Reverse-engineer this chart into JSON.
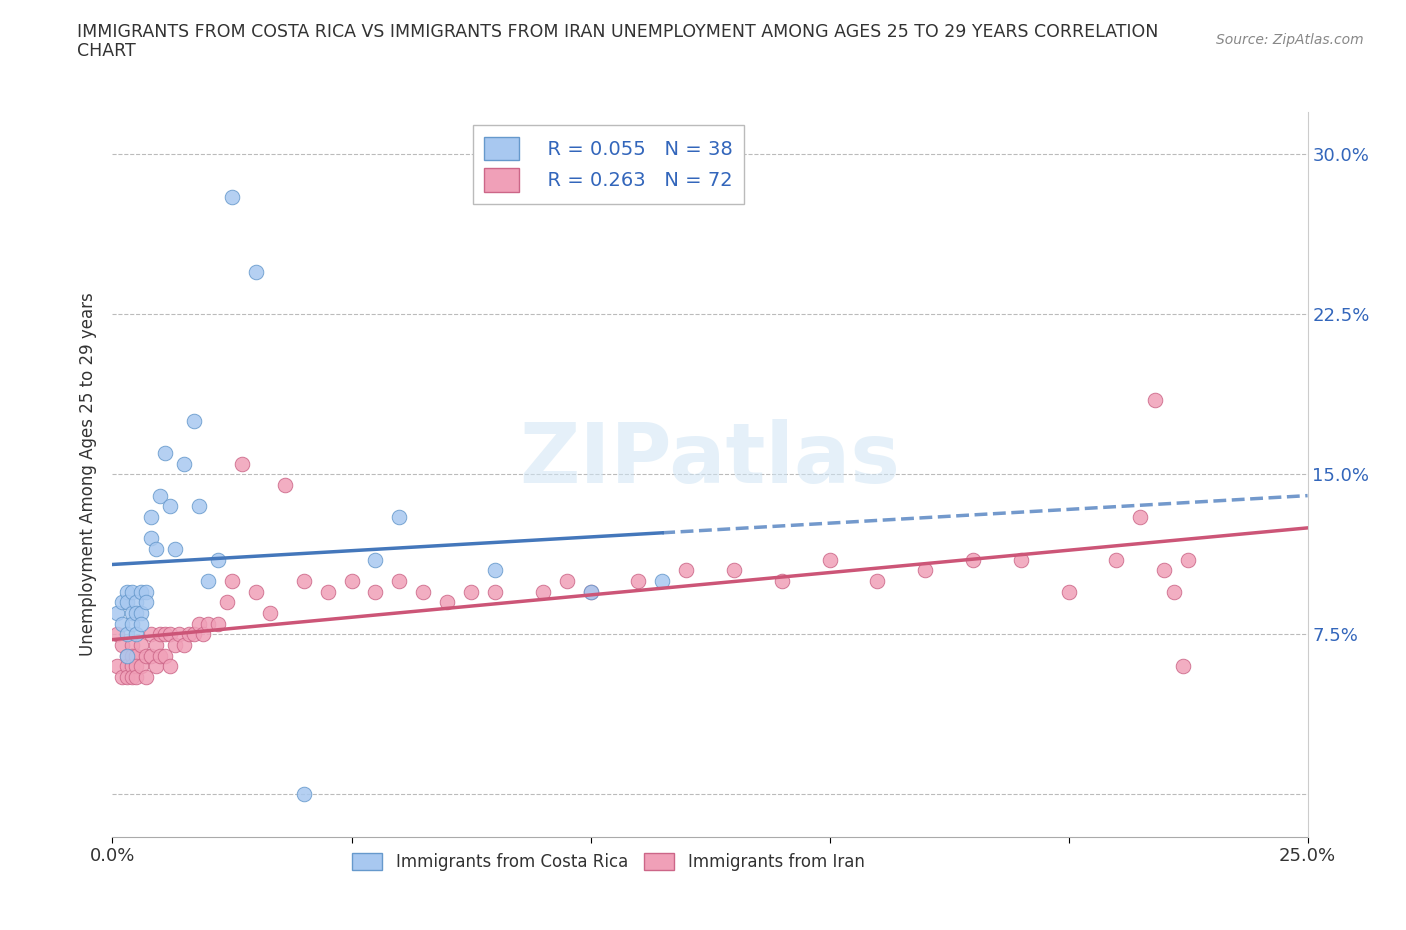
{
  "title_line1": "IMMIGRANTS FROM COSTA RICA VS IMMIGRANTS FROM IRAN UNEMPLOYMENT AMONG AGES 25 TO 29 YEARS CORRELATION",
  "title_line2": "CHART",
  "source": "Source: ZipAtlas.com",
  "ylabel": "Unemployment Among Ages 25 to 29 years",
  "xlim": [
    0.0,
    0.25
  ],
  "ylim": [
    -0.02,
    0.32
  ],
  "ytick_positions": [
    0.0,
    0.075,
    0.15,
    0.225,
    0.3
  ],
  "ytick_labels": [
    "",
    "7.5%",
    "15.0%",
    "22.5%",
    "30.0%"
  ],
  "xtick_positions": [
    0.0,
    0.05,
    0.1,
    0.15,
    0.2,
    0.25
  ],
  "xtick_labels": [
    "0.0%",
    "",
    "",
    "",
    "",
    "25.0%"
  ],
  "costa_rica_color": "#a8c8f0",
  "costa_rica_edge": "#6699cc",
  "iran_color": "#f0a0b8",
  "iran_edge": "#cc6688",
  "costa_rica_R": 0.055,
  "costa_rica_N": 38,
  "iran_R": 0.263,
  "iran_N": 72,
  "trend_blue_color": "#4477bb",
  "trend_pink_color": "#cc5577",
  "watermark_text": "ZIPatlas",
  "costa_rica_label": "Immigrants from Costa Rica",
  "iran_label": "Immigrants from Iran",
  "costa_rica_x": [
    0.001,
    0.002,
    0.002,
    0.003,
    0.003,
    0.003,
    0.003,
    0.004,
    0.004,
    0.004,
    0.005,
    0.005,
    0.005,
    0.006,
    0.006,
    0.006,
    0.007,
    0.007,
    0.008,
    0.008,
    0.009,
    0.01,
    0.011,
    0.012,
    0.013,
    0.015,
    0.017,
    0.018,
    0.02,
    0.022,
    0.025,
    0.03,
    0.04,
    0.055,
    0.06,
    0.08,
    0.1,
    0.115
  ],
  "costa_rica_y": [
    0.085,
    0.08,
    0.09,
    0.095,
    0.09,
    0.075,
    0.065,
    0.085,
    0.08,
    0.095,
    0.09,
    0.085,
    0.075,
    0.095,
    0.085,
    0.08,
    0.095,
    0.09,
    0.12,
    0.13,
    0.115,
    0.14,
    0.16,
    0.135,
    0.115,
    0.155,
    0.175,
    0.135,
    0.1,
    0.11,
    0.28,
    0.245,
    0.0,
    0.11,
    0.13,
    0.105,
    0.095,
    0.1
  ],
  "iran_x": [
    0.001,
    0.001,
    0.002,
    0.002,
    0.003,
    0.003,
    0.003,
    0.004,
    0.004,
    0.004,
    0.004,
    0.005,
    0.005,
    0.005,
    0.006,
    0.006,
    0.007,
    0.007,
    0.008,
    0.008,
    0.009,
    0.009,
    0.01,
    0.01,
    0.011,
    0.011,
    0.012,
    0.012,
    0.013,
    0.014,
    0.015,
    0.016,
    0.017,
    0.018,
    0.019,
    0.02,
    0.022,
    0.024,
    0.025,
    0.027,
    0.03,
    0.033,
    0.036,
    0.04,
    0.045,
    0.05,
    0.055,
    0.06,
    0.065,
    0.07,
    0.075,
    0.08,
    0.09,
    0.095,
    0.1,
    0.11,
    0.12,
    0.13,
    0.14,
    0.15,
    0.16,
    0.17,
    0.18,
    0.19,
    0.2,
    0.21,
    0.215,
    0.218,
    0.22,
    0.222,
    0.224,
    0.225
  ],
  "iran_y": [
    0.075,
    0.06,
    0.07,
    0.055,
    0.065,
    0.06,
    0.055,
    0.07,
    0.065,
    0.06,
    0.055,
    0.065,
    0.06,
    0.055,
    0.07,
    0.06,
    0.065,
    0.055,
    0.075,
    0.065,
    0.07,
    0.06,
    0.075,
    0.065,
    0.075,
    0.065,
    0.075,
    0.06,
    0.07,
    0.075,
    0.07,
    0.075,
    0.075,
    0.08,
    0.075,
    0.08,
    0.08,
    0.09,
    0.1,
    0.155,
    0.095,
    0.085,
    0.145,
    0.1,
    0.095,
    0.1,
    0.095,
    0.1,
    0.095,
    0.09,
    0.095,
    0.095,
    0.095,
    0.1,
    0.095,
    0.1,
    0.105,
    0.105,
    0.1,
    0.11,
    0.1,
    0.105,
    0.11,
    0.11,
    0.095,
    0.11,
    0.13,
    0.185,
    0.105,
    0.095,
    0.06,
    0.11
  ]
}
